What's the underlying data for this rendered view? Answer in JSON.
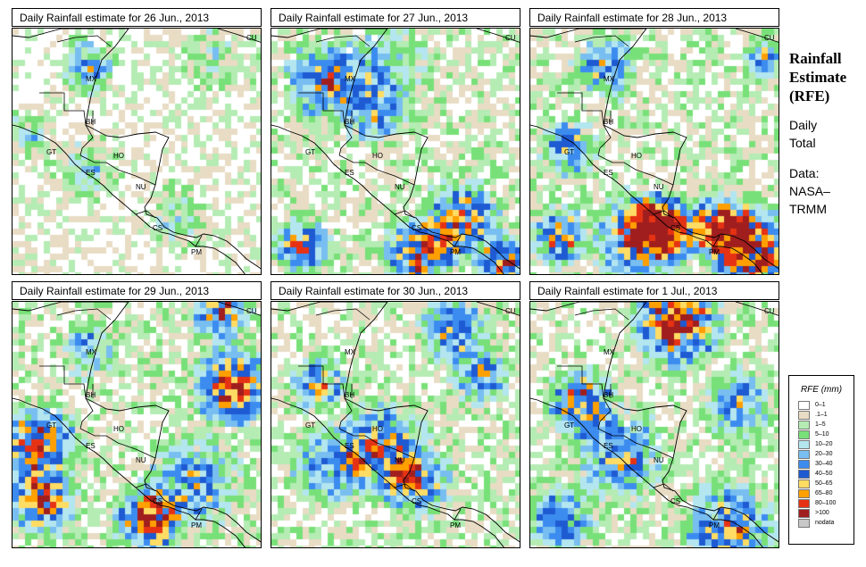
{
  "panels": [
    {
      "title": "Daily Rainfall estimate for  26 Jun., 2013",
      "day": "26jun"
    },
    {
      "title": "Daily Rainfall estimate for  27 Jun., 2013",
      "day": "27jun"
    },
    {
      "title": "Daily Rainfall estimate for  28 Jun., 2013",
      "day": "28jun"
    },
    {
      "title": "Daily Rainfall estimate for  29 Jun., 2013",
      "day": "29jun"
    },
    {
      "title": "Daily Rainfall estimate for  30 Jun., 2013",
      "day": "30jun"
    },
    {
      "title": "Daily Rainfall estimate for  1 Jul., 2013",
      "day": "1jul"
    }
  ],
  "country_labels": [
    "MX",
    "BH",
    "GT",
    "HO",
    "ES",
    "NU",
    "CS",
    "PM",
    "CU"
  ],
  "side": {
    "title_line1": "Rainfall",
    "title_line2": "Estimate",
    "title_line3": "(RFE)",
    "desc_line1": "Daily",
    "desc_line2": "Total",
    "data_line1": "Data:",
    "data_line2": "NASA–",
    "data_line3": "TRMM"
  },
  "legend": {
    "title": "RFE (mm)",
    "items": [
      {
        "label": "0–1",
        "color": "#ffffff"
      },
      {
        "label": ".1–1",
        "color": "#e8dcc4"
      },
      {
        "label": "1–5",
        "color": "#b4ecb4"
      },
      {
        "label": "5–10",
        "color": "#78e078"
      },
      {
        "label": "10–20",
        "color": "#b4e6f0"
      },
      {
        "label": "20–30",
        "color": "#78bef0"
      },
      {
        "label": "30–40",
        "color": "#3c8cf0"
      },
      {
        "label": "40–50",
        "color": "#1e5ad2"
      },
      {
        "label": "50–65",
        "color": "#ffdc64"
      },
      {
        "label": "65–80",
        "color": "#ffa000"
      },
      {
        "label": "80–100",
        "color": "#e63214"
      },
      {
        "label": ">100",
        "color": "#a01e1e"
      },
      {
        "label": "nodata",
        "color": "#c8c8c8"
      }
    ]
  }
}
